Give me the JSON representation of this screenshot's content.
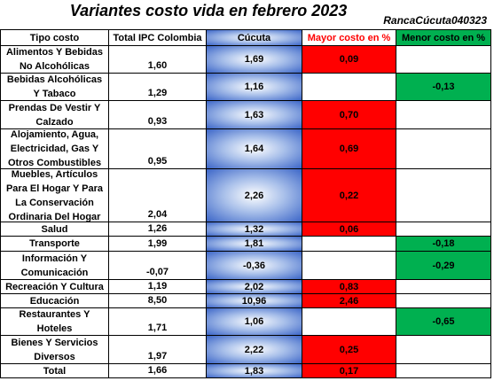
{
  "title": "Variantes costo vida en febrero 2023",
  "watermark": "RancaCúcuta040323",
  "table": {
    "headers": [
      "Tipo costo",
      "Total IPC Colombia",
      "Cúcuta",
      "Mayor costo en %",
      "Menor costo en %"
    ],
    "rows": [
      [
        "Alimentos Y Bebidas No Alcohólicas",
        "1,60",
        "1,69",
        "0,09",
        null
      ],
      [
        "Bebidas Alcohólicas Y Tabaco",
        "1,29",
        "1,16",
        null,
        "-0,13"
      ],
      [
        "Prendas De Vestir Y Calzado",
        "0,93",
        "1,63",
        "0,70",
        null
      ],
      [
        "Alojamiento, Agua, Electricidad, Gas Y Otros Combustibles",
        "0,95",
        "1,64",
        "0,69",
        null
      ],
      [
        "Muebles, Artículos Para El Hogar Y Para La Conservación Ordinaria Del Hogar",
        "2,04",
        "2,26",
        "0,22",
        null
      ],
      [
        "Salud",
        "1,26",
        "1,32",
        "0,06",
        null
      ],
      [
        "Transporte",
        "1,99",
        "1,81",
        null,
        "-0,18"
      ],
      [
        "Información Y Comunicación",
        "-0,07",
        "-0,36",
        null,
        "-0,29"
      ],
      [
        "Recreación Y Cultura",
        "1,19",
        "2,02",
        "0,83",
        null
      ],
      [
        "Educación",
        "8,50",
        "10,96",
        "2,46",
        null
      ],
      [
        "Restaurantes Y Hoteles",
        "1,71",
        "1,06",
        null,
        "-0,65"
      ],
      [
        "Bienes Y Servicios Diversos",
        "1,97",
        "2,22",
        "0,25",
        null
      ],
      [
        "Total",
        "1,66",
        "1,83",
        "0,17",
        null
      ]
    ]
  }
}
